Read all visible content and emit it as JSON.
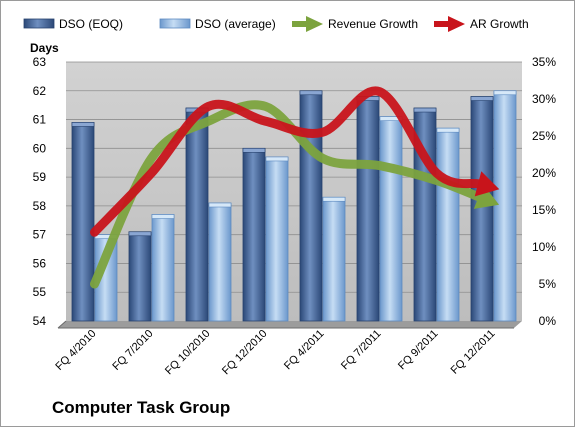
{
  "chart_data": {
    "type": "bar",
    "caption": "Computer Task Group",
    "ylabel": "Days",
    "ylim": [
      54,
      63
    ],
    "y2lim": [
      0,
      0.35
    ],
    "y_ticks": [
      "54",
      "55",
      "56",
      "57",
      "58",
      "59",
      "60",
      "61",
      "62",
      "63"
    ],
    "y2_ticks": [
      "0%",
      "5%",
      "10%",
      "15%",
      "20%",
      "25%",
      "30%",
      "35%"
    ],
    "categories": [
      "FQ 4/2010",
      "FQ 7/2010",
      "FQ 10/2010",
      "FQ 12/2010",
      "FQ 4/2011",
      "FQ 7/2011",
      "FQ 9/2011",
      "FQ 12/2011"
    ],
    "series": [
      {
        "name": "DSO (EOQ)",
        "values": [
          60.9,
          57.1,
          61.4,
          60.0,
          62.0,
          61.8,
          61.4,
          61.8
        ]
      },
      {
        "name": "DSO (average)",
        "values": [
          57.0,
          57.7,
          58.1,
          59.7,
          58.3,
          61.1,
          60.7,
          62.0
        ]
      },
      {
        "name": "Revenue Growth",
        "axis": "secondary",
        "values": [
          0.05,
          0.22,
          0.27,
          0.29,
          0.22,
          0.21,
          0.19,
          0.16
        ]
      },
      {
        "name": "AR Growth",
        "axis": "secondary",
        "values": [
          0.12,
          0.2,
          0.29,
          0.27,
          0.255,
          0.31,
          0.2,
          0.18
        ]
      }
    ],
    "colors": {
      "eoq": "#4f6fa0",
      "eoq_dark": "#27426e",
      "avg": "#9fc3e8",
      "avg_dark": "#5d8ac0",
      "revenue": "#7ca33e",
      "ar": "#c8141b",
      "plot_bg": "#c6c6c6",
      "floor": "#9c9c9c"
    },
    "grid": true,
    "legend": "top"
  }
}
